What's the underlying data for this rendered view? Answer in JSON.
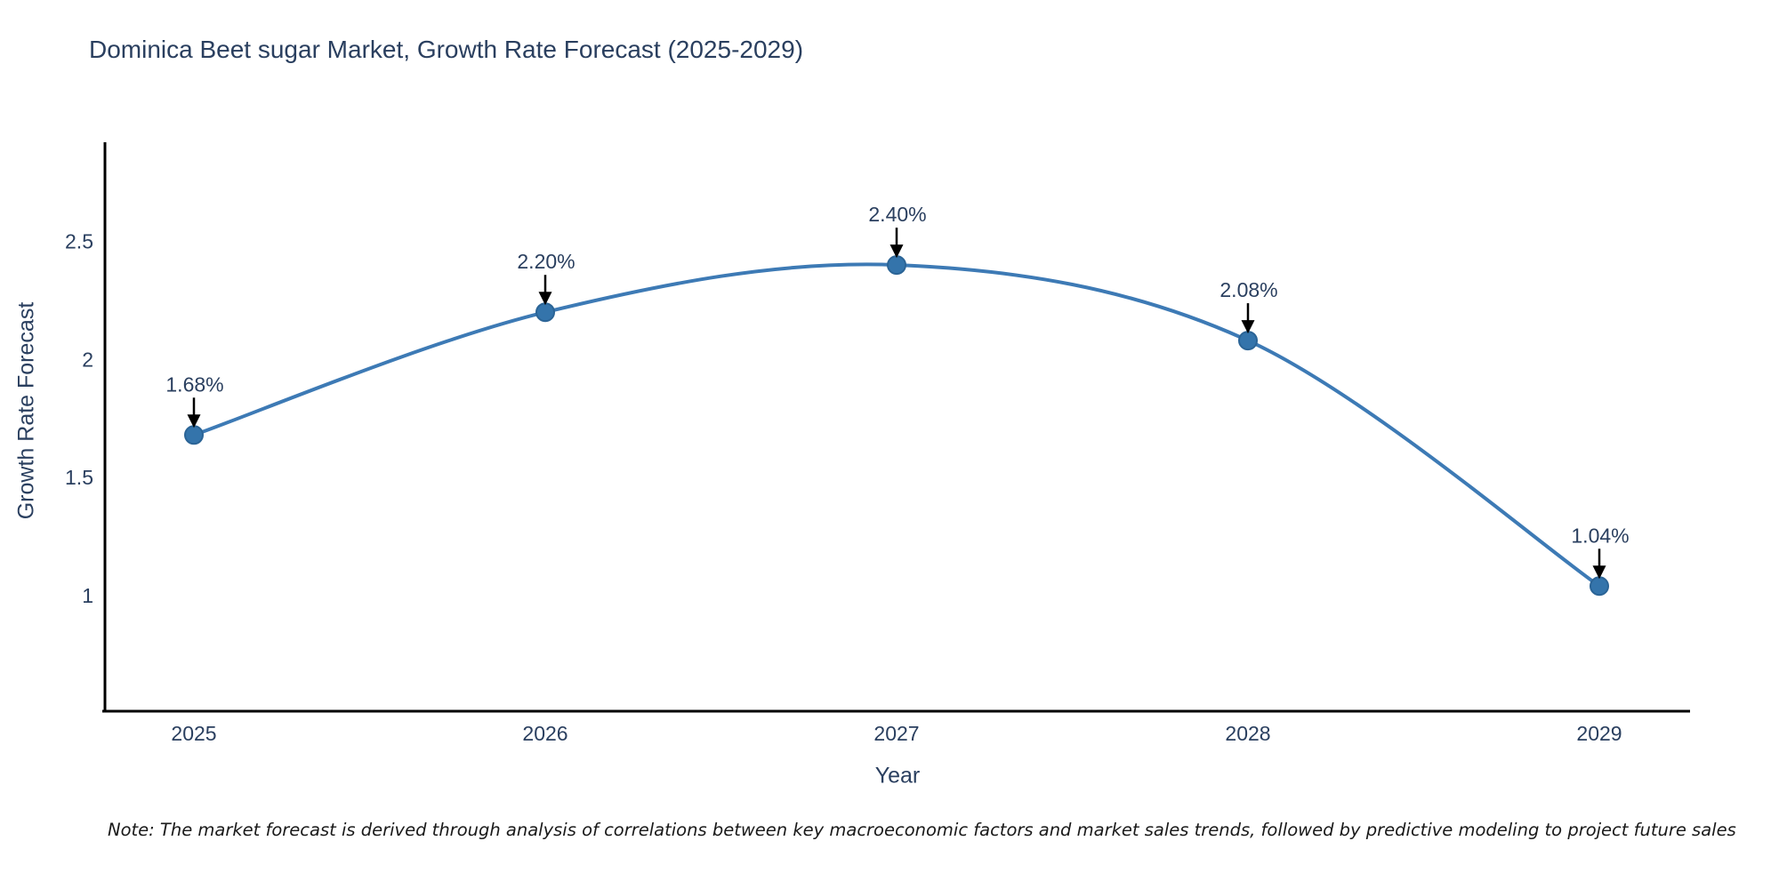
{
  "title": "Dominica Beet sugar Market, Growth Rate Forecast (2025-2029)",
  "note": "Note: The market forecast is derived through analysis of correlations between key macroeconomic factors and market sales trends, followed by predictive modeling to project future sales",
  "chart_data": {
    "type": "line",
    "title": "Dominica Beet sugar Market, Growth Rate Forecast (2025-2029)",
    "xlabel": "Year",
    "ylabel": "Growth Rate Forecast",
    "categories": [
      "2025",
      "2026",
      "2027",
      "2028",
      "2029"
    ],
    "values": [
      1.68,
      2.2,
      2.4,
      2.08,
      1.04
    ],
    "point_labels": [
      "1.68%",
      "2.20%",
      "2.40%",
      "2.08%",
      "1.04%"
    ],
    "yticks": [
      1,
      1.5,
      2,
      2.5
    ],
    "ylim": [
      0.51,
      2.92
    ],
    "line_shape": "spline",
    "grid": false,
    "legend": "none",
    "colors": {
      "line": "#3d7ab5",
      "marker_fill": "#3474ab",
      "marker_edge": "#2b6496",
      "text": "#2a3f5f",
      "axis": "#000000",
      "annotation_arrow": "#000000",
      "note_text": "#1a1a1a"
    }
  }
}
